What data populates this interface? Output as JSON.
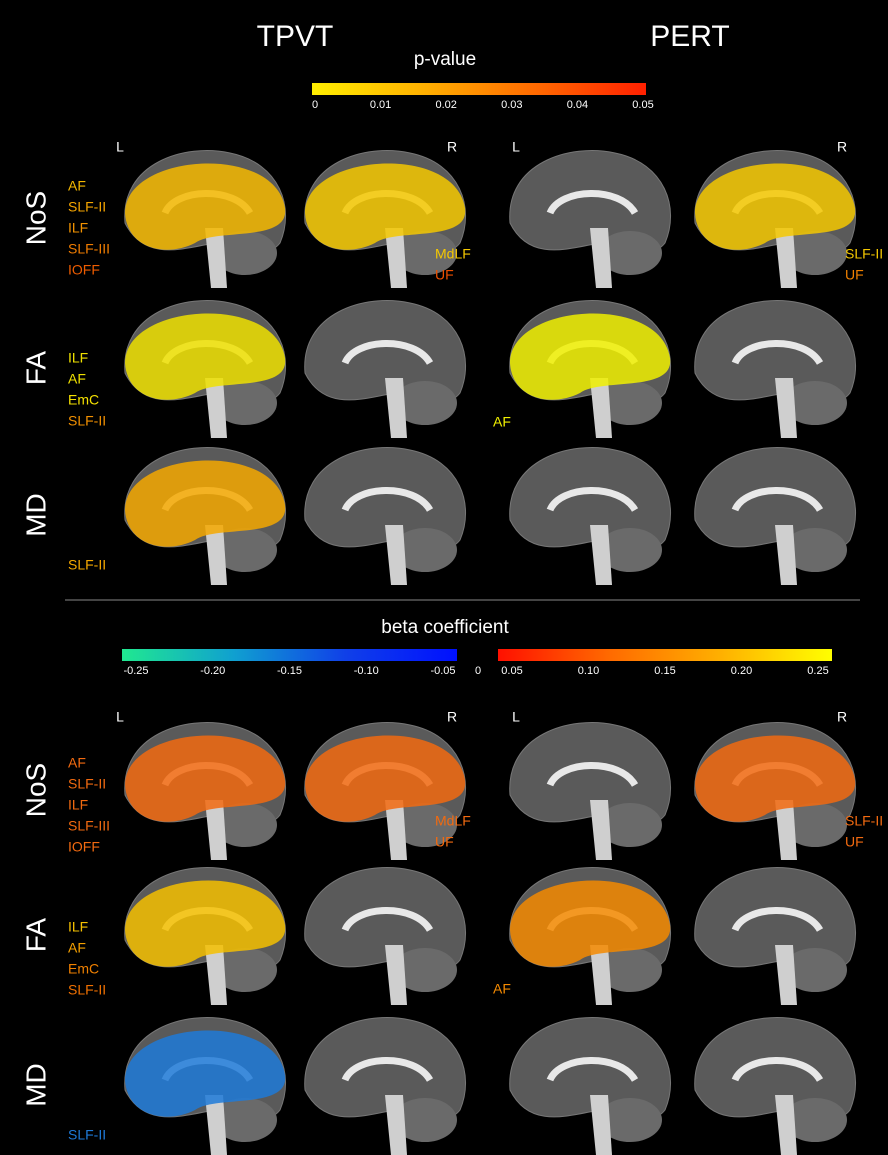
{
  "header": {
    "columns": [
      "TPVT",
      "PERT"
    ]
  },
  "panels": [
    {
      "title": "p-value",
      "colorbars": [
        {
          "stops": [
            "#ffee00",
            "#ffb000",
            "#ff6a00",
            "#ff2000"
          ],
          "ticks": [
            "0",
            "0.01",
            "0.02",
            "0.03",
            "0.04",
            "0.05"
          ]
        }
      ],
      "hemispheres": [
        "L",
        "R",
        "L",
        "R"
      ],
      "rows": [
        {
          "label": "NoS",
          "tracts": [
            [
              {
                "name": "AF",
                "color": "#f5b800"
              },
              {
                "name": "SLF-II",
                "color": "#f5a500"
              },
              {
                "name": "ILF",
                "color": "#f29200"
              },
              {
                "name": "SLF-III",
                "color": "#f07c00"
              },
              {
                "name": "IOFF",
                "color": "#ee5c00"
              }
            ],
            [
              {
                "name": "MdLF",
                "color": "#f5c800"
              },
              {
                "name": "UF",
                "color": "#ee5000"
              }
            ],
            [],
            [
              {
                "name": "SLF-II",
                "color": "#f5c800"
              },
              {
                "name": "UF",
                "color": "#f08000"
              }
            ]
          ]
        },
        {
          "label": "FA",
          "tracts": [
            [
              {
                "name": "ILF",
                "color": "#eee000"
              },
              {
                "name": "AF",
                "color": "#eee000"
              },
              {
                "name": "EmC",
                "color": "#f5e000"
              },
              {
                "name": "SLF-II",
                "color": "#f29000"
              }
            ],
            [],
            [
              {
                "name": "AF",
                "color": "#f0f000"
              }
            ],
            []
          ]
        },
        {
          "label": "MD",
          "tracts": [
            [
              {
                "name": "SLF-II",
                "color": "#f5a800"
              }
            ],
            [],
            [],
            []
          ]
        }
      ]
    },
    {
      "title": "beta coefficient",
      "colorbars": [
        {
          "stops": [
            "#20e890",
            "#10a0d0",
            "#1040e8",
            "#0010ff"
          ],
          "ticks": [
            "-0.25",
            "-0.20",
            "-0.15",
            "-0.10",
            "-0.05"
          ]
        },
        {
          "stops": [
            "#ff1000",
            "#ff6a00",
            "#ffb000",
            "#ffff00"
          ],
          "ticks": [
            "0.05",
            "0.10",
            "0.15",
            "0.20",
            "0.25"
          ]
        }
      ],
      "zero": "0",
      "hemispheres": [
        "L",
        "R",
        "L",
        "R"
      ],
      "rows": [
        {
          "label": "NoS",
          "tracts": [
            [
              {
                "name": "AF",
                "color": "#f26a10"
              },
              {
                "name": "SLF-II",
                "color": "#f26a10"
              },
              {
                "name": "ILF",
                "color": "#f26a10"
              },
              {
                "name": "SLF-III",
                "color": "#f26a10"
              },
              {
                "name": "IOFF",
                "color": "#f26a10"
              }
            ],
            [
              {
                "name": "MdLF",
                "color": "#f26a10"
              },
              {
                "name": "UF",
                "color": "#f26a10"
              }
            ],
            [],
            [
              {
                "name": "SLF-II",
                "color": "#f26a10"
              },
              {
                "name": "UF",
                "color": "#f26a10"
              }
            ]
          ]
        },
        {
          "label": "FA",
          "tracts": [
            [
              {
                "name": "ILF",
                "color": "#f5c000"
              },
              {
                "name": "AF",
                "color": "#f5a000"
              },
              {
                "name": "EmC",
                "color": "#f08000"
              },
              {
                "name": "SLF-II",
                "color": "#f07000"
              }
            ],
            [],
            [
              {
                "name": "AF",
                "color": "#f58a00"
              }
            ],
            []
          ]
        },
        {
          "label": "MD",
          "tracts": [
            [
              {
                "name": "SLF-II",
                "color": "#1e7ad8"
              }
            ],
            [],
            [],
            []
          ]
        }
      ]
    }
  ]
}
